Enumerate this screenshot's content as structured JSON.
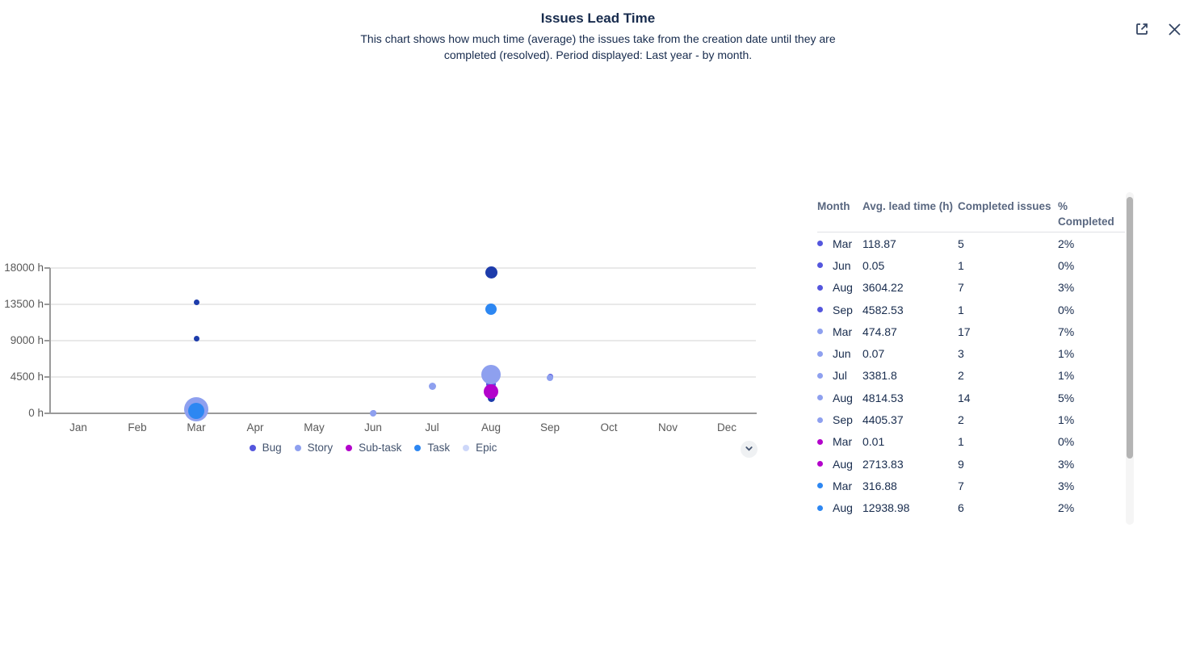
{
  "header": {
    "title": "Issues Lead Time",
    "subtitle": "This chart shows how much time (average) the issues take from the creation date until they are completed (resolved). Period displayed: Last year - by month.",
    "export_icon": "open-in-new-icon",
    "close_icon": "close-icon"
  },
  "colors": {
    "Bug": "#5456dd",
    "Story": "#8ea0ef",
    "Sub-task": "#b303cb",
    "Task": "#2d87f2",
    "Epic": "#cdd7f9",
    "Unlabeled": "#1d3cab",
    "title_text": "#172b4d",
    "axis_text": "#595959",
    "header_text": "#596780",
    "legend_text": "#44546f",
    "gridline": "#e9e9e9",
    "axis_line": "#9a9a9a",
    "icon": "#344563"
  },
  "chart_data": {
    "type": "scatter",
    "title": "Issues Lead Time",
    "xlabel": "",
    "ylabel": "",
    "categories": [
      "Jan",
      "Feb",
      "Mar",
      "Apr",
      "May",
      "Jun",
      "Jul",
      "Aug",
      "Sep",
      "Oct",
      "Nov",
      "Dec"
    ],
    "y_axis": {
      "tick_labels": [
        "0 h",
        "4500 h",
        "9000 h",
        "13500 h",
        "18000 h"
      ],
      "tick_values": [
        0,
        4500,
        9000,
        13500,
        18000
      ],
      "ylim": [
        0,
        18000
      ]
    },
    "grid": true,
    "legend_position": "bottom",
    "series_legend": [
      {
        "name": "Bug",
        "color": "#5456dd"
      },
      {
        "name": "Story",
        "color": "#8ea0ef"
      },
      {
        "name": "Sub-task",
        "color": "#b303cb"
      },
      {
        "name": "Task",
        "color": "#2d87f2"
      },
      {
        "name": "Epic",
        "color": "#cdd7f9"
      }
    ],
    "bubbles": [
      {
        "series": "Bug",
        "month": "Mar",
        "value": 118.87,
        "r": 8
      },
      {
        "series": "Bug",
        "month": "Jun",
        "value": 0.05,
        "r": 3.5
      },
      {
        "series": "Bug",
        "month": "Aug",
        "value": 3604.22,
        "r": 6
      },
      {
        "series": "Bug",
        "month": "Sep",
        "value": 4582.53,
        "r": 3.5
      },
      {
        "series": "Sub-task",
        "month": "Mar",
        "value": 0.01,
        "r": 3.5
      },
      {
        "series": "Unlabeled",
        "month": "Mar",
        "value": 13800,
        "r": 3.5
      },
      {
        "series": "Unlabeled",
        "month": "Mar",
        "value": 9300,
        "r": 3.5
      },
      {
        "series": "Unlabeled",
        "month": "Aug",
        "value": 17500,
        "r": 7.5
      },
      {
        "series": "Unlabeled",
        "month": "Aug",
        "value": 1850,
        "r": 4.5
      },
      {
        "series": "Story",
        "month": "Mar",
        "value": 474.87,
        "r": 15
      },
      {
        "series": "Story",
        "month": "Jun",
        "value": 0.07,
        "r": 4
      },
      {
        "series": "Story",
        "month": "Jul",
        "value": 3381.8,
        "r": 4.5
      },
      {
        "series": "Story",
        "month": "Aug",
        "value": 4814.53,
        "r": 12
      },
      {
        "series": "Story",
        "month": "Sep",
        "value": 4405.37,
        "r": 4
      },
      {
        "series": "Sub-task",
        "month": "Aug",
        "value": 2713.83,
        "r": 9
      },
      {
        "series": "Task",
        "month": "Mar",
        "value": 316.88,
        "r": 10
      },
      {
        "series": "Task",
        "month": "Aug",
        "value": 12938.98,
        "r": 7
      }
    ]
  },
  "legend_more_icon": "chevron-down-icon",
  "table": {
    "headers": [
      "Month",
      "Avg. lead time (h)",
      "Completed issues",
      "% Completed"
    ],
    "rows": [
      {
        "series": "Bug",
        "month": "Mar",
        "lead_time": "118.87",
        "completed": "5",
        "pct": "2%"
      },
      {
        "series": "Bug",
        "month": "Jun",
        "lead_time": "0.05",
        "completed": "1",
        "pct": "0%"
      },
      {
        "series": "Bug",
        "month": "Aug",
        "lead_time": "3604.22",
        "completed": "7",
        "pct": "3%"
      },
      {
        "series": "Bug",
        "month": "Sep",
        "lead_time": "4582.53",
        "completed": "1",
        "pct": "0%"
      },
      {
        "series": "Story",
        "month": "Mar",
        "lead_time": "474.87",
        "completed": "17",
        "pct": "7%"
      },
      {
        "series": "Story",
        "month": "Jun",
        "lead_time": "0.07",
        "completed": "3",
        "pct": "1%"
      },
      {
        "series": "Story",
        "month": "Jul",
        "lead_time": "3381.8",
        "completed": "2",
        "pct": "1%"
      },
      {
        "series": "Story",
        "month": "Aug",
        "lead_time": "4814.53",
        "completed": "14",
        "pct": "5%"
      },
      {
        "series": "Story",
        "month": "Sep",
        "lead_time": "4405.37",
        "completed": "2",
        "pct": "1%"
      },
      {
        "series": "Sub-task",
        "month": "Mar",
        "lead_time": "0.01",
        "completed": "1",
        "pct": "0%"
      },
      {
        "series": "Sub-task",
        "month": "Aug",
        "lead_time": "2713.83",
        "completed": "9",
        "pct": "3%"
      },
      {
        "series": "Task",
        "month": "Mar",
        "lead_time": "316.88",
        "completed": "7",
        "pct": "3%"
      },
      {
        "series": "Task",
        "month": "Aug",
        "lead_time": "12938.98",
        "completed": "6",
        "pct": "2%"
      }
    ]
  }
}
